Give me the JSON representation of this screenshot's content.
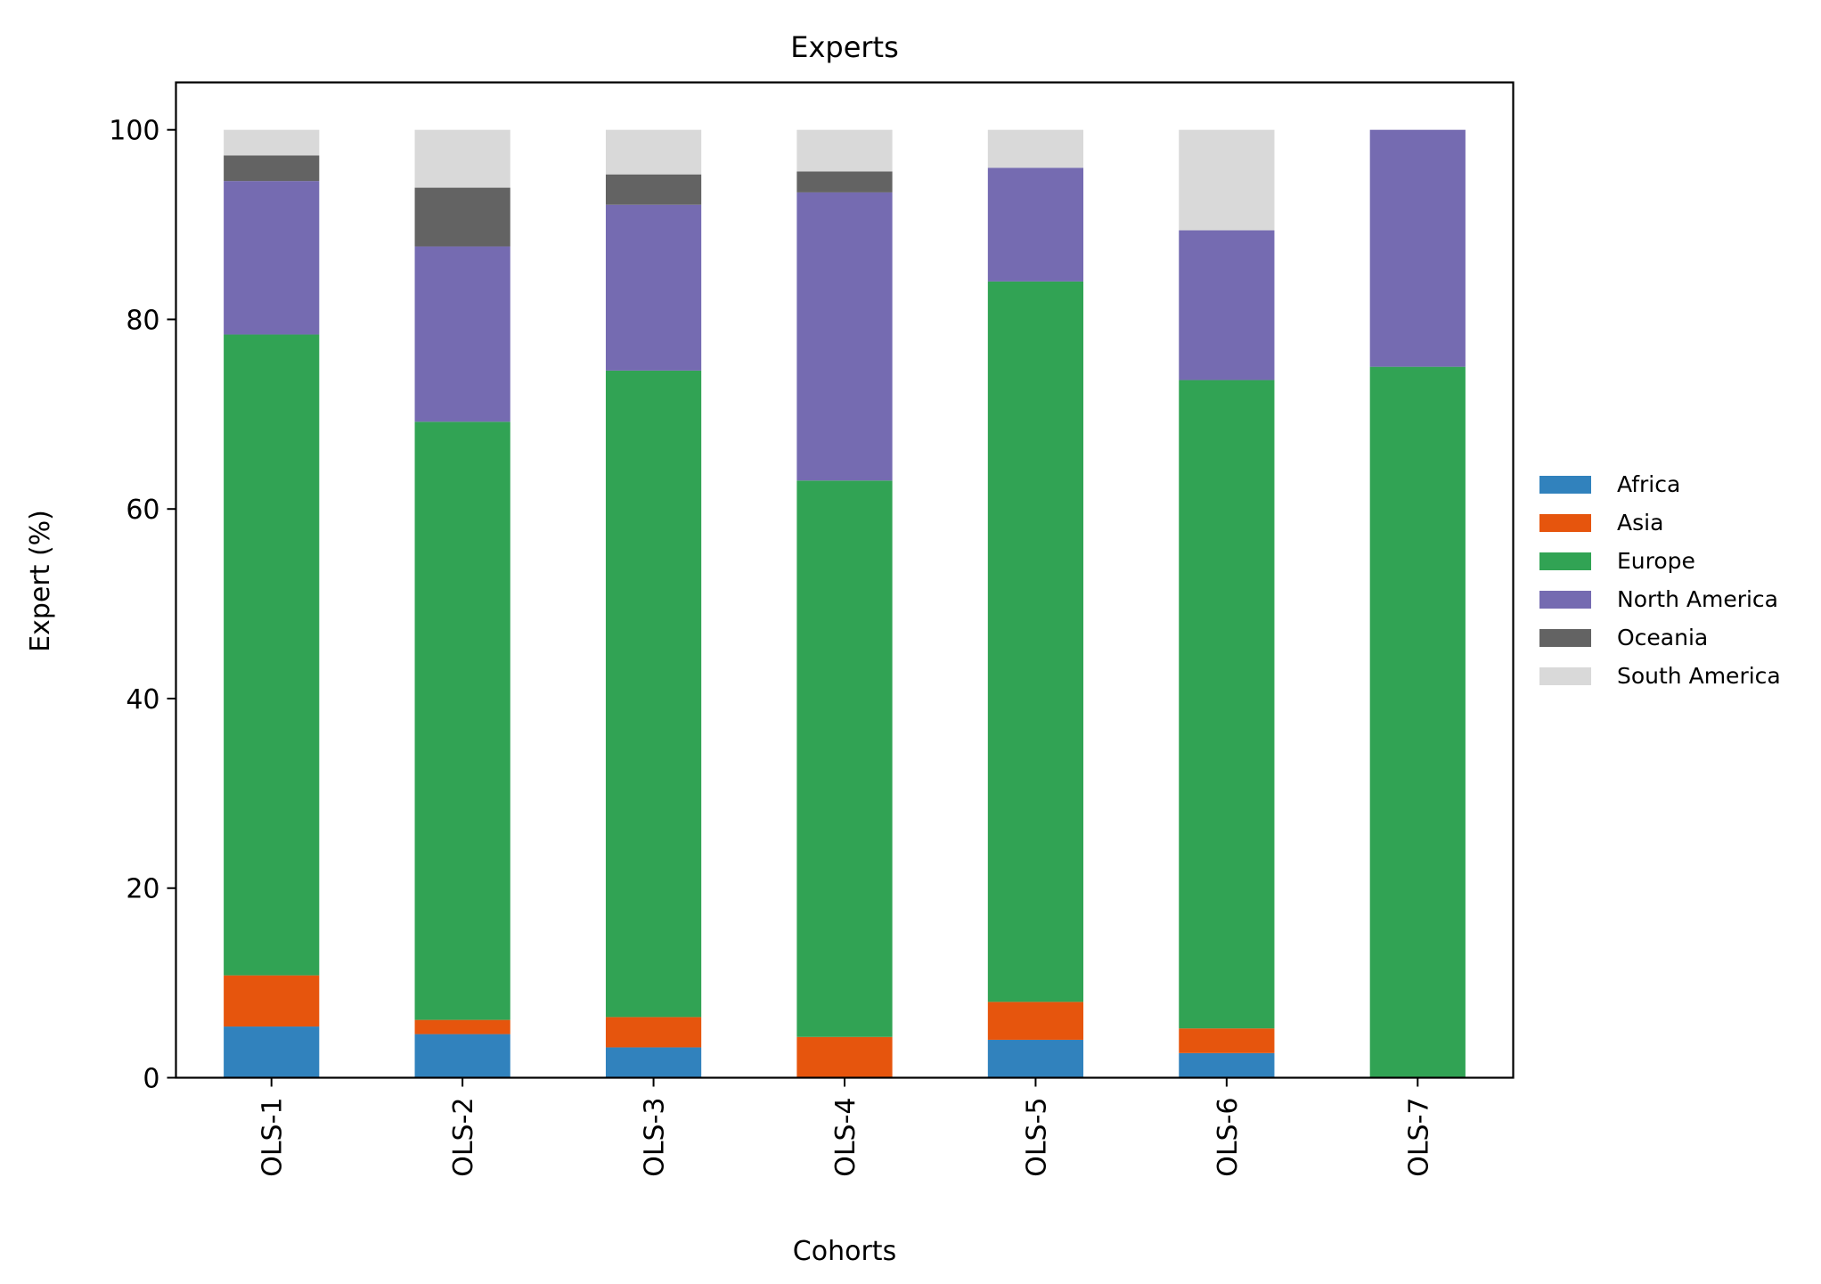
{
  "chart_data": {
    "type": "bar",
    "stacked": true,
    "title": "Experts",
    "xlabel": "Cohorts",
    "ylabel": "Expert (%)",
    "ylim": [
      0,
      105
    ],
    "yticks": [
      0,
      20,
      40,
      60,
      80,
      100
    ],
    "categories": [
      "OLS-1",
      "OLS-2",
      "OLS-3",
      "OLS-4",
      "OLS-5",
      "OLS-6",
      "OLS-7"
    ],
    "series": [
      {
        "name": "Africa",
        "color": "#3182bd",
        "values": [
          5.4,
          4.6,
          3.2,
          0,
          4.0,
          2.6,
          0
        ]
      },
      {
        "name": "Asia",
        "color": "#e6550d",
        "values": [
          5.4,
          1.5,
          3.2,
          4.3,
          4.0,
          2.6,
          0
        ]
      },
      {
        "name": "Europe",
        "color": "#31a354",
        "values": [
          67.6,
          63.1,
          68.2,
          58.7,
          76.0,
          68.4,
          75.0
        ]
      },
      {
        "name": "North America",
        "color": "#756bb1",
        "values": [
          16.2,
          18.5,
          17.5,
          30.4,
          12.0,
          15.8,
          25.0
        ]
      },
      {
        "name": "Oceania",
        "color": "#636363",
        "values": [
          2.7,
          6.2,
          3.2,
          2.2,
          0,
          0,
          0
        ]
      },
      {
        "name": "South America",
        "color": "#d9d9d9",
        "values": [
          2.7,
          6.1,
          4.7,
          4.4,
          4.0,
          10.6,
          0
        ]
      }
    ],
    "legend": "right, outside plot area",
    "grid": false
  }
}
